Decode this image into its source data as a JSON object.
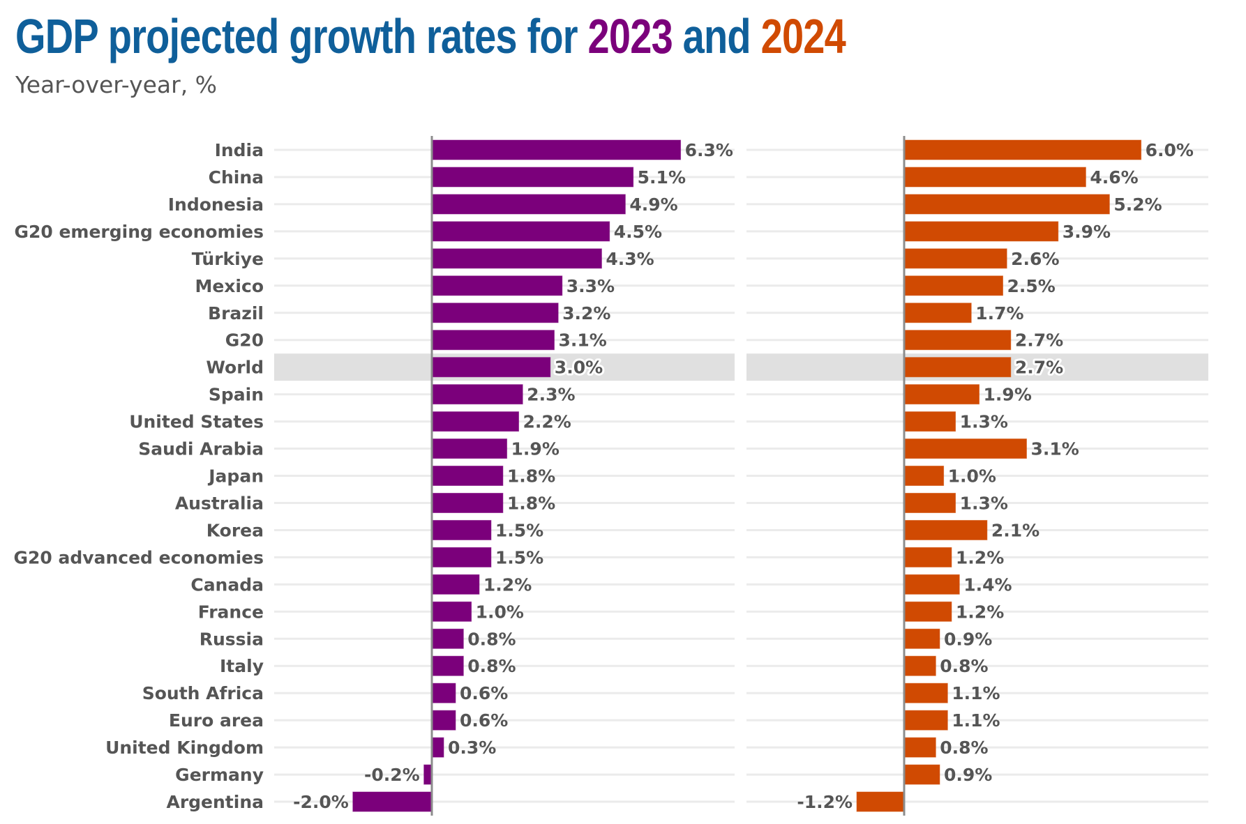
{
  "chart_data": {
    "type": "bar",
    "orientation": "horizontal",
    "title": "GDP projected growth rates for 2023 and 2024",
    "title_parts": [
      {
        "text": "GDP projected growth rates for ",
        "role": "base"
      },
      {
        "text": "2023",
        "role": "series1"
      },
      {
        "text": " and ",
        "role": "base"
      },
      {
        "text": "2024",
        "role": "series2"
      }
    ],
    "subtitle": "Year-over-year, %",
    "xlabel": "",
    "ylabel": "",
    "grid": true,
    "legend": "title",
    "highlight_category": "World",
    "categories": [
      "India",
      "China",
      "Indonesia",
      "G20 emerging economies",
      "Türkiye",
      "Mexico",
      "Brazil",
      "G20",
      "World",
      "Spain",
      "United States",
      "Saudi Arabia",
      "Japan",
      "Australia",
      "Korea",
      "G20 advanced economies",
      "Canada",
      "France",
      "Russia",
      "Italy",
      "South Africa",
      "Euro area",
      "United Kingdom",
      "Germany",
      "Argentina"
    ],
    "series": [
      {
        "name": "2023",
        "color": "#7B007B",
        "values": [
          6.3,
          5.1,
          4.9,
          4.5,
          4.3,
          3.3,
          3.2,
          3.1,
          3.0,
          2.3,
          2.2,
          1.9,
          1.8,
          1.8,
          1.5,
          1.5,
          1.2,
          1.0,
          0.8,
          0.8,
          0.6,
          0.6,
          0.3,
          -0.2,
          -2.0
        ],
        "labels": [
          "6.3%",
          "5.1%",
          "4.9%",
          "4.5%",
          "4.3%",
          "3.3%",
          "3.2%",
          "3.1%",
          "3.0%",
          "2.3%",
          "2.2%",
          "1.9%",
          "1.8%",
          "1.8%",
          "1.5%",
          "1.5%",
          "1.2%",
          "1.0%",
          "0.8%",
          "0.8%",
          "0.6%",
          "0.6%",
          "0.3%",
          "-0.2%",
          "-2.0%"
        ]
      },
      {
        "name": "2024",
        "color": "#D04A02",
        "values": [
          6.0,
          4.6,
          5.2,
          3.9,
          2.6,
          2.5,
          1.7,
          2.7,
          2.7,
          1.9,
          1.3,
          3.1,
          1.0,
          1.3,
          2.1,
          1.2,
          1.4,
          1.2,
          0.9,
          0.8,
          1.1,
          1.1,
          0.8,
          0.9,
          -1.2
        ],
        "labels": [
          "6.0%",
          "4.6%",
          "5.2%",
          "3.9%",
          "2.6%",
          "2.5%",
          "1.7%",
          "2.7%",
          "2.7%",
          "1.9%",
          "1.3%",
          "3.1%",
          "1.0%",
          "1.3%",
          "2.1%",
          "1.2%",
          "1.4%",
          "1.2%",
          "0.9%",
          "0.8%",
          "1.1%",
          "1.1%",
          "0.8%",
          "0.9%",
          "-1.2%"
        ]
      }
    ],
    "xlim": [
      -4.0,
      7.9
    ]
  },
  "colors": {
    "title": "#0F5F9A",
    "text": "#555555",
    "grid": "#EBEBEB",
    "highlight_band": "#E0E0E0",
    "zero_axis": "#8C8C8C"
  }
}
